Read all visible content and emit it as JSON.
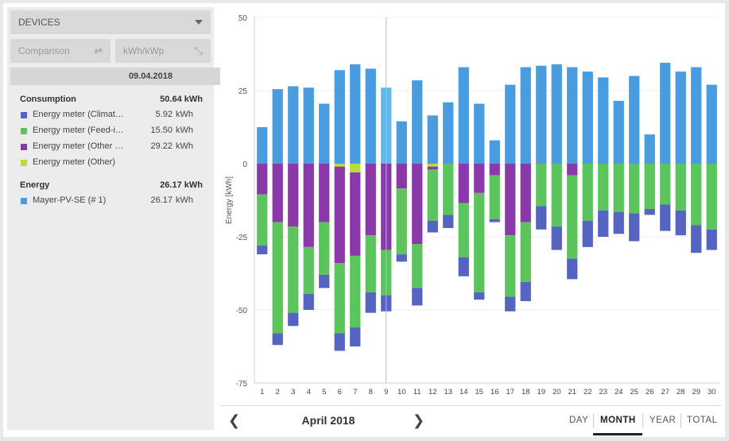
{
  "panel": {
    "devices_label": "DEVICES",
    "comparison_label": "Comparison",
    "unit_label": "kWh/kWp",
    "date": "09.04.2018",
    "groups": [
      {
        "title": "Consumption",
        "total": "50.64",
        "unit": "kWh",
        "items": [
          {
            "name": "Energy meter (Climat…",
            "value": "5.92",
            "unit": "kWh",
            "color": "#5563c1"
          },
          {
            "name": "Energy meter (Feed-i…",
            "value": "15.50",
            "unit": "kWh",
            "color": "#5cc45c"
          },
          {
            "name": "Energy meter (Other …",
            "value": "29.22",
            "unit": "kWh",
            "color": "#8a3aa8"
          },
          {
            "name": "Energy meter (Other)",
            "value": "",
            "unit": "",
            "color": "#b9dc3c"
          }
        ]
      },
      {
        "title": "Energy",
        "total": "26.17",
        "unit": "kWh",
        "items": [
          {
            "name": "Mayer-PV-SE (# 1)",
            "value": "26.17",
            "unit": "kWh",
            "color": "#4a9ce0"
          }
        ]
      }
    ]
  },
  "footer": {
    "month": "April 2018",
    "periods": [
      "DAY",
      "MONTH",
      "YEAR",
      "TOTAL"
    ],
    "active_period": "MONTH"
  },
  "colors": {
    "energy": "#4a9ce0",
    "energy_highlight": "#60b8e8",
    "climate": "#5563c1",
    "feedin": "#5cc45c",
    "other": "#8a3aa8",
    "other2": "#b9dc3c"
  },
  "chart_data": {
    "type": "bar",
    "ylabel": "Energy [kWh]",
    "ylim": [
      -75,
      50
    ],
    "yticks": [
      50,
      25,
      0,
      -25,
      -50,
      -75
    ],
    "categories": [
      "1",
      "2",
      "3",
      "4",
      "5",
      "6",
      "7",
      "8",
      "9",
      "10",
      "11",
      "12",
      "13",
      "14",
      "15",
      "16",
      "17",
      "18",
      "19",
      "20",
      "21",
      "22",
      "23",
      "24",
      "25",
      "26",
      "27",
      "28",
      "29",
      "30"
    ],
    "highlight_category": "9",
    "series": [
      {
        "name": "Mayer-PV-SE (# 1)",
        "values": [
          12.5,
          25.5,
          26.5,
          26,
          20.5,
          32,
          34,
          32.5,
          26,
          14.5,
          28.5,
          16.5,
          21,
          33,
          20.5,
          8,
          27,
          33,
          33.5,
          34,
          33,
          31.5,
          29.5,
          21.5,
          30,
          10,
          34.5,
          31.5,
          33,
          27
        ]
      },
      {
        "name": "Energy meter (Other)",
        "values": [
          0,
          0,
          0,
          0,
          0,
          -1,
          -3,
          0,
          0,
          0,
          0,
          -1,
          0,
          0,
          0,
          0,
          0,
          0,
          0,
          0,
          0,
          0,
          0,
          0,
          0,
          0,
          0,
          0,
          0,
          0
        ]
      },
      {
        "name": "Energy meter (Other …",
        "values": [
          -10.5,
          -20,
          -21.5,
          -28.5,
          -20,
          -33,
          -28.5,
          -24.5,
          -29.5,
          -8.5,
          -27.5,
          -1,
          0,
          -13.5,
          -10,
          -4,
          -24.5,
          -20,
          0,
          0,
          -4,
          0,
          0,
          0,
          0,
          0,
          0,
          0,
          0,
          0
        ]
      },
      {
        "name": "Energy meter (Feed-i…",
        "values": [
          -17.5,
          -38,
          -29.5,
          -16,
          -18,
          -24,
          -24.5,
          -19.5,
          -15.5,
          -22.5,
          -15,
          -17.5,
          -17.5,
          -18.5,
          -34,
          -15,
          -21,
          -20.5,
          -14.5,
          -21.5,
          -28.5,
          -19.5,
          -16,
          -16.5,
          -17,
          -15.5,
          -14,
          -16,
          -21,
          -22.5
        ]
      },
      {
        "name": "Energy meter (Climat…",
        "values": [
          -3,
          -4,
          -4.5,
          -5.5,
          -4.5,
          -6,
          -6.5,
          -7,
          -5.5,
          -2.5,
          -6,
          -4,
          -4.5,
          -6.5,
          -2.5,
          -1,
          -5,
          -6.5,
          -8,
          -8,
          -7,
          -9,
          -9,
          -7.5,
          -9.5,
          -2,
          -9,
          -8.5,
          -9.5,
          -7
        ]
      }
    ]
  }
}
